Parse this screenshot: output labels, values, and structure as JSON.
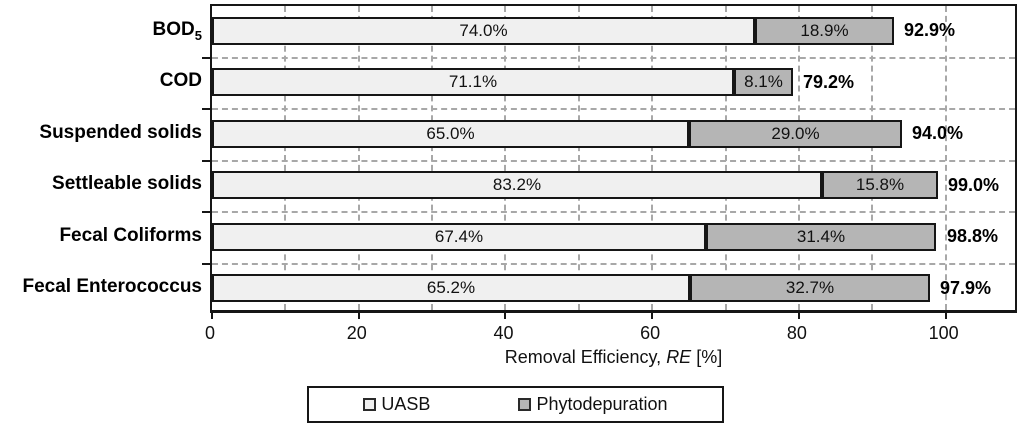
{
  "chart_data": {
    "type": "bar",
    "orientation": "horizontal",
    "stacked": true,
    "title": "",
    "xlabel_parts": [
      {
        "text": "Removal Efficiency, "
      },
      {
        "text": "RE",
        "italic": true
      },
      {
        "text": " [%]"
      }
    ],
    "xlim": [
      0,
      110
    ],
    "x_ticks": [
      0,
      20,
      40,
      60,
      80,
      100
    ],
    "x_minor_grid_step": 10,
    "grid": "dashed",
    "legend_position": "bottom",
    "categories": [
      {
        "label": "BOD",
        "sub": "5"
      },
      {
        "label": "COD"
      },
      {
        "label": "Suspended solids"
      },
      {
        "label": "Settleable solids"
      },
      {
        "label": "Fecal Coliforms"
      },
      {
        "label": "Fecal Enterococcus"
      }
    ],
    "series": [
      {
        "name": "UASB",
        "color": "#f0f0f0",
        "values": [
          74.0,
          71.1,
          65.0,
          83.2,
          67.4,
          65.2
        ],
        "labels": [
          "74.0%",
          "71.1%",
          "65.0%",
          "83.2%",
          "67.4%",
          "65.2%"
        ]
      },
      {
        "name": "Phytodepuration",
        "color": "#b5b5b5",
        "values": [
          18.9,
          8.1,
          29.0,
          15.8,
          31.4,
          32.7
        ],
        "labels": [
          "18.9%",
          "8.1%",
          "29.0%",
          "15.8%",
          "31.4%",
          "32.7%"
        ]
      }
    ],
    "totals": [
      92.9,
      79.2,
      94.0,
      99.0,
      98.8,
      97.9
    ],
    "total_labels": [
      "92.9%",
      "79.2%",
      "94.0%",
      "99.0%",
      "98.8%",
      "97.9%"
    ],
    "colors": {
      "bar_border": "#161616",
      "axis": "#161616",
      "gridline": "#a8a8a8",
      "text": "#111111",
      "background": "#ffffff"
    }
  }
}
